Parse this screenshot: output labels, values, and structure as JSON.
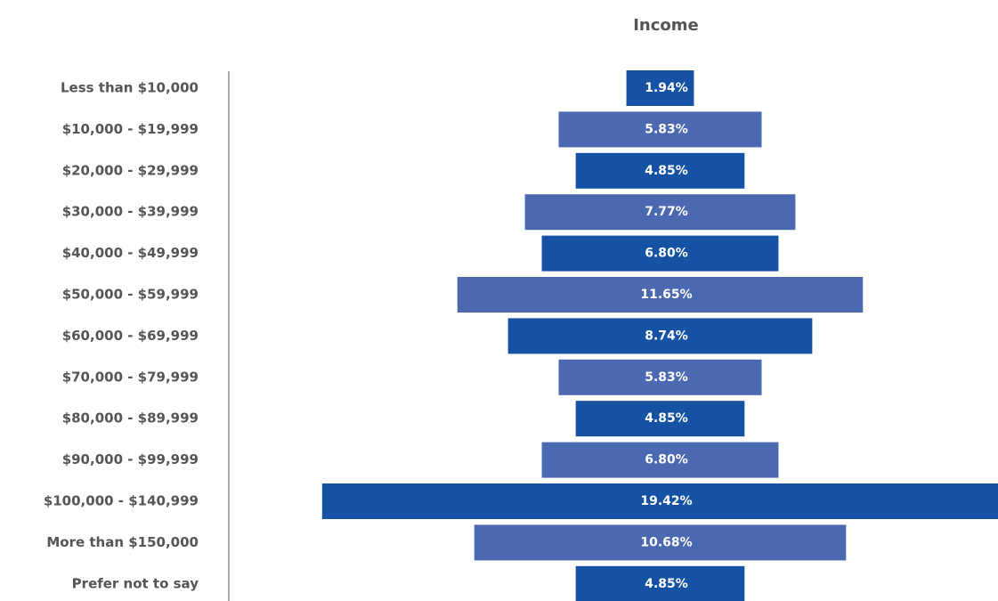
{
  "chart_data": {
    "type": "funnel",
    "title": "Income",
    "categories": [
      "Less than $10,000",
      "$10,000 - $19,999",
      "$20,000 - $29,999",
      "$30,000 - $39,999",
      "$40,000 - $49,999",
      "$50,000 - $59,999",
      "$60,000 - $69,999",
      "$70,000 - $79,999",
      "$80,000 - $89,999",
      "$90,000 - $99,999",
      "$100,000 - $140,999",
      "More than $150,000",
      "Prefer not to say"
    ],
    "values": [
      1.94,
      5.83,
      4.85,
      7.77,
      6.8,
      11.65,
      8.74,
      5.83,
      4.85,
      6.8,
      19.42,
      10.68,
      4.85
    ],
    "value_labels": [
      "1.94%",
      "5.83%",
      "4.85%",
      "7.77%",
      "6.80%",
      "11.65%",
      "8.74%",
      "5.83%",
      "4.85%",
      "6.80%",
      "19.42%",
      "10.68%",
      "4.85%"
    ],
    "colors": [
      "#1652a3",
      "#4a69b0"
    ]
  }
}
